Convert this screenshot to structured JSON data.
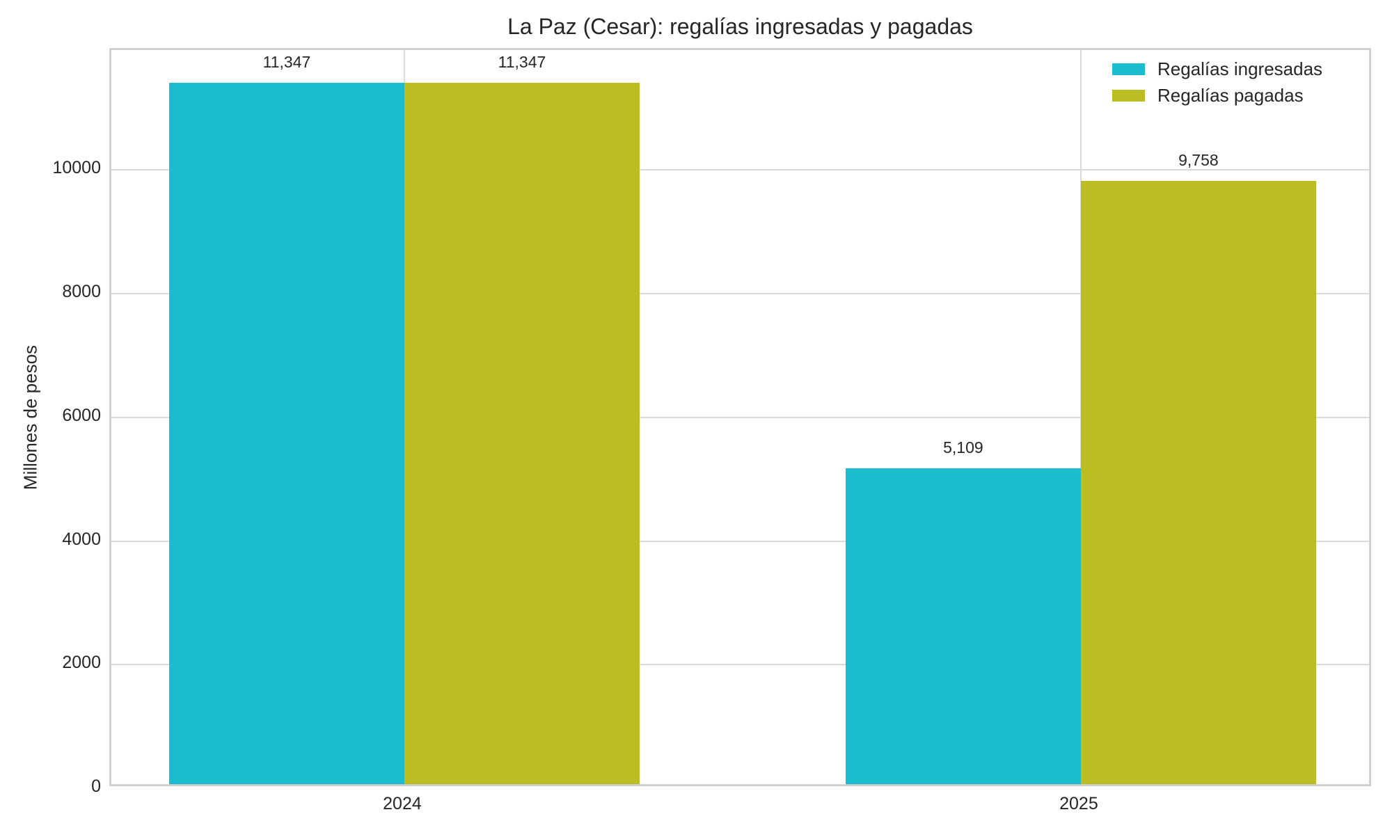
{
  "chart_data": {
    "type": "bar",
    "title": "La Paz (Cesar): regalías ingresadas y pagadas",
    "xlabel": "",
    "ylabel": "Millones de pesos",
    "categories": [
      "2024",
      "2025"
    ],
    "series": [
      {
        "name": "Regalías ingresadas",
        "color": "#1abccd",
        "values": [
          11347,
          5109
        ],
        "labels": [
          "11,347",
          "5,109"
        ]
      },
      {
        "name": "Regalías pagadas",
        "color": "#bcbd22",
        "values": [
          11347,
          9758
        ],
        "labels": [
          "11,347",
          "9,758"
        ]
      }
    ],
    "yticks": [
      0,
      2000,
      4000,
      6000,
      8000,
      10000
    ],
    "ylim": [
      0,
      11940
    ],
    "grid": true,
    "legend_position": "upper right",
    "background_color": "#ffffff",
    "grid_color": "#dadada",
    "spine_color": "#d0d0d0",
    "text_color": "#262626"
  }
}
